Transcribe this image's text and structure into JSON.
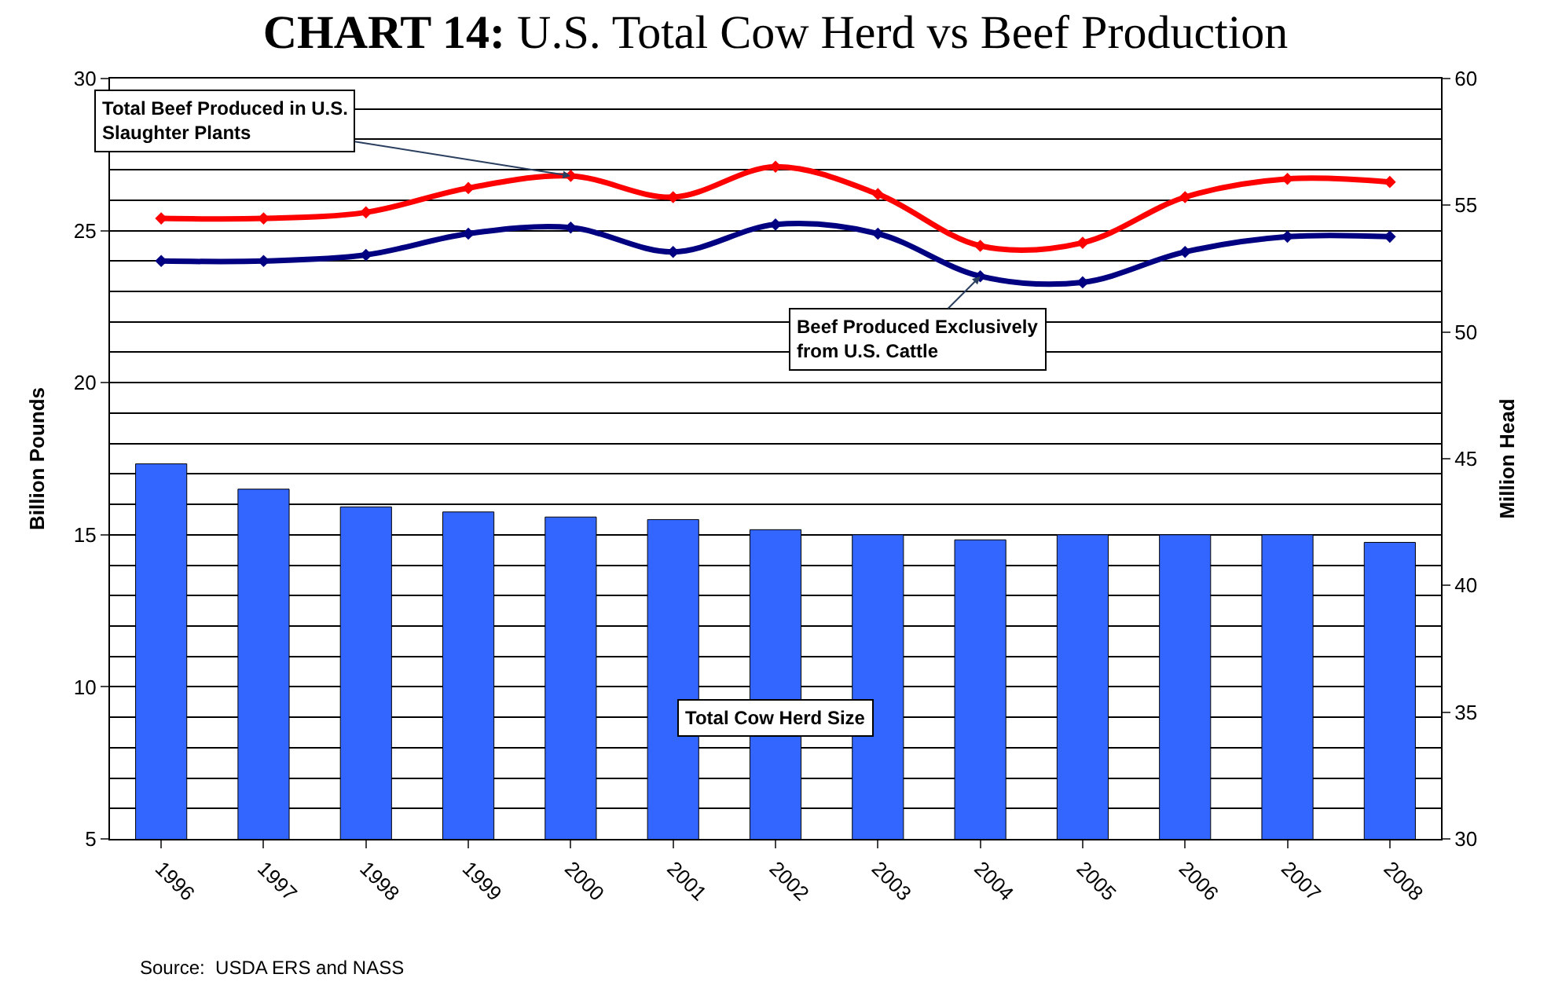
{
  "chart_data": {
    "type": "bar",
    "title": "CHART 14: U.S. Total Cow Herd vs Beef Production",
    "ylabel": "Billion Pounds",
    "y2label": "Million Head",
    "categories": [
      "1996",
      "1997",
      "1998",
      "1999",
      "2000",
      "2001",
      "2002",
      "2003",
      "2004",
      "2005",
      "2006",
      "2007",
      "2008"
    ],
    "series": [
      {
        "axis": "y2",
        "color": "#3366ff",
        "values": [
          44.8,
          43.8,
          43.1,
          42.9,
          42.7,
          42.6,
          42.2,
          42.0,
          41.8,
          42.0,
          42.0,
          42.0,
          41.7
        ]
      },
      {
        "type": "line",
        "color": "#ff0000",
        "values": [
          25.4,
          25.4,
          25.6,
          26.4,
          26.8,
          26.1,
          27.1,
          26.2,
          24.5,
          24.6,
          26.1,
          26.7,
          26.6
        ]
      },
      {
        "type": "line",
        "color": "#000080",
        "values": [
          24.0,
          24.0,
          24.2,
          24.9,
          25.1,
          24.3,
          25.2,
          24.9,
          23.5,
          23.3,
          24.3,
          24.8,
          24.8
        ]
      }
    ],
    "ylim": [
      5,
      30
    ],
    "yticks": [
      5,
      10,
      15,
      20,
      25,
      30
    ],
    "y2lim": [
      30,
      60
    ],
    "y2ticks": [
      30,
      35,
      40,
      45,
      50,
      55,
      60
    ],
    "grid": "y",
    "marker": "diamond",
    "line_style": "solid",
    "annotations": [
      {
        "text": "Total Beef Produced in U.S.\nSlaughter Plants",
        "x": "2000",
        "y": 26.8
      },
      {
        "text": "Beef Produced Exclusively\nfrom U.S. Cattle",
        "x": "2004",
        "y": 23.5
      },
      "Total Cow Herd Size",
      "Source:  USDA ERS and NASS"
    ]
  }
}
